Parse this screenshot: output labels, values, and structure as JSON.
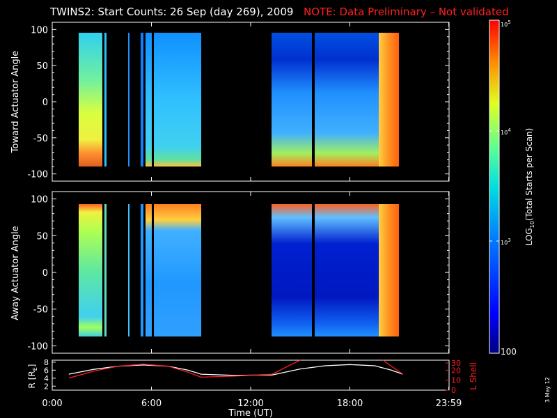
{
  "title": {
    "main": "TWINS2: Start Counts: 26 Sep (day 269), 2009",
    "note": "NOTE: Data Preliminary – Not validated"
  },
  "colors": {
    "background": "#000000",
    "note": "#ff2020",
    "r_line": "#ffffff",
    "lshell_line": "#ff2020"
  },
  "date_stamp": "3 May 12",
  "chart_data": [
    {
      "type": "heatmap",
      "name": "toward-panel",
      "ylabel": "Toward Actuator Angle",
      "ylim": [
        -110,
        110
      ],
      "yticks": [
        "100",
        "50",
        "0",
        "-50",
        "-100"
      ],
      "ytick_values": [
        100,
        50,
        0,
        -50,
        -100
      ],
      "xlim": [
        0,
        24
      ],
      "x_coverage_hours": [
        [
          1.0,
          8.9
        ],
        [
          13.2,
          21.2
        ]
      ],
      "angle_coverage": [
        -90,
        90
      ]
    },
    {
      "type": "heatmap",
      "name": "away-panel",
      "ylabel": "Away Actuator Angle",
      "ylim": [
        -110,
        110
      ],
      "yticks": [
        "100",
        "50",
        "0",
        "-50",
        "-100"
      ],
      "ytick_values": [
        100,
        50,
        0,
        -50,
        -100
      ],
      "xlim": [
        0,
        24
      ],
      "x_coverage_hours": [
        [
          1.0,
          8.9
        ],
        [
          13.2,
          21.2
        ]
      ],
      "angle_coverage": [
        -90,
        90
      ]
    },
    {
      "type": "line",
      "name": "orbit-panel",
      "xlabel": "Time (UT)",
      "xlim": [
        0,
        24
      ],
      "xticks": [
        "0:00",
        "6:00",
        "12:00",
        "18:00",
        "23:59"
      ],
      "xtick_values": [
        0,
        6,
        12,
        18,
        23.98
      ],
      "ylabel_left": "R [R",
      "ylabel_left_sub": "E",
      "ylabel_left_close": "]",
      "ylim_left": [
        2,
        8
      ],
      "yticks_left": [
        "8",
        "6",
        "4",
        "2"
      ],
      "ytick_values_left": [
        8,
        6,
        4,
        2
      ],
      "ylabel_right": "L Shell",
      "ylim_right": [
        0,
        30
      ],
      "yticks_right": [
        "30",
        "20",
        "10",
        "0"
      ],
      "ytick_values_right": [
        30,
        20,
        10,
        0
      ],
      "series": [
        {
          "axis": "left",
          "x": [
            1.0,
            2.5,
            4.0,
            5.5,
            7.0,
            8.2,
            9.0,
            11.0,
            13.3,
            15.0,
            16.5,
            18.0,
            19.5,
            20.5,
            21.2
          ],
          "y": [
            5.0,
            6.2,
            7.0,
            7.3,
            7.0,
            6.0,
            5.0,
            4.7,
            4.8,
            6.3,
            7.1,
            7.4,
            7.1,
            6.0,
            5.0
          ]
        },
        {
          "axis": "right",
          "x": [
            1.0,
            2.5,
            4.0,
            5.5,
            7.0,
            8.2,
            9.0,
            11.0,
            13.3,
            14.5,
            15.0
          ],
          "y": [
            12,
            19,
            24,
            26,
            24,
            18,
            13,
            14,
            16,
            26,
            31
          ]
        },
        {
          "axis": "right",
          "x": [
            20.0,
            21.2
          ],
          "y": [
            31,
            16
          ]
        }
      ]
    },
    {
      "type": "heatmap",
      "name": "colorbar",
      "label": "LOG",
      "label_sub": "10",
      "label_rest": "(Total Starts per Scan)",
      "scale": "log",
      "range": [
        100,
        100000
      ],
      "tick_100": "100",
      "tick_1e3_base": "10",
      "tick_1e3_exp": "3",
      "tick_1e4_base": "10",
      "tick_1e4_exp": "4",
      "tick_1e5_base": "10",
      "tick_1e5_exp": "5"
    }
  ]
}
